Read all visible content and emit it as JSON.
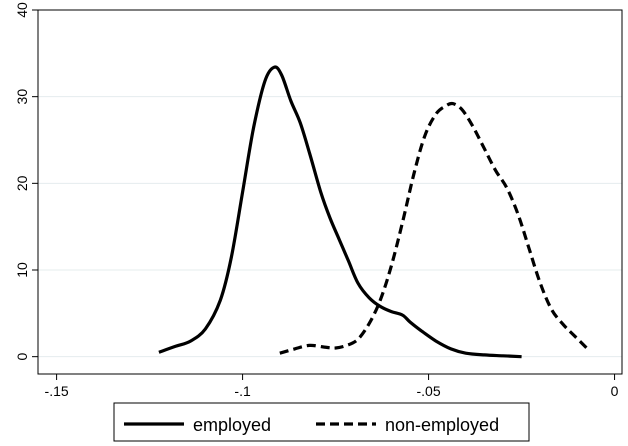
{
  "chart_data": {
    "type": "line",
    "title": "",
    "xlabel": "",
    "ylabel": "",
    "xlim": [
      -0.155,
      0.002
    ],
    "ylim": [
      -2,
      40
    ],
    "grid": true,
    "legend_position": "bottom",
    "x_ticks": [
      {
        "value": -0.15,
        "label": "-.15"
      },
      {
        "value": -0.1,
        "label": "-.1"
      },
      {
        "value": -0.05,
        "label": "-.05"
      },
      {
        "value": 0,
        "label": "0"
      }
    ],
    "y_ticks": [
      {
        "value": 0,
        "label": "0"
      },
      {
        "value": 10,
        "label": "10"
      },
      {
        "value": 20,
        "label": "20"
      },
      {
        "value": 30,
        "label": "30"
      },
      {
        "value": 40,
        "label": "40"
      }
    ],
    "series": [
      {
        "name": "employed",
        "style": "solid",
        "x": [
          -0.1225,
          -0.118,
          -0.114,
          -0.11,
          -0.106,
          -0.103,
          -0.1,
          -0.097,
          -0.094,
          -0.0915,
          -0.0895,
          -0.087,
          -0.0845,
          -0.082,
          -0.079,
          -0.0765,
          -0.074,
          -0.0715,
          -0.069,
          -0.066,
          -0.063,
          -0.06,
          -0.057,
          -0.055,
          -0.052,
          -0.048,
          -0.044,
          -0.04,
          -0.035,
          -0.03,
          -0.025
        ],
        "y": [
          0.5,
          1.2,
          1.8,
          3.2,
          6.5,
          11.5,
          19.0,
          26.5,
          31.8,
          33.4,
          32.5,
          29.5,
          27.0,
          23.5,
          19.0,
          16.0,
          13.5,
          11.0,
          8.5,
          6.8,
          5.8,
          5.2,
          4.8,
          4.0,
          3.0,
          1.8,
          0.9,
          0.4,
          0.2,
          0.1,
          0.0
        ]
      },
      {
        "name": "non-employed",
        "style": "dashed",
        "x": [
          -0.09,
          -0.086,
          -0.082,
          -0.078,
          -0.075,
          -0.072,
          -0.069,
          -0.066,
          -0.063,
          -0.06,
          -0.057,
          -0.054,
          -0.051,
          -0.048,
          -0.0455,
          -0.0435,
          -0.041,
          -0.038,
          -0.035,
          -0.032,
          -0.029,
          -0.026,
          -0.023,
          -0.02,
          -0.017,
          -0.014,
          -0.011,
          -0.0075
        ],
        "y": [
          0.4,
          0.9,
          1.3,
          1.1,
          1.0,
          1.3,
          2.0,
          3.8,
          6.5,
          10.5,
          15.5,
          21.0,
          25.5,
          28.0,
          28.9,
          29.2,
          28.5,
          26.5,
          24.0,
          21.5,
          19.5,
          16.5,
          12.5,
          8.5,
          5.5,
          3.8,
          2.5,
          1.0
        ]
      }
    ]
  }
}
